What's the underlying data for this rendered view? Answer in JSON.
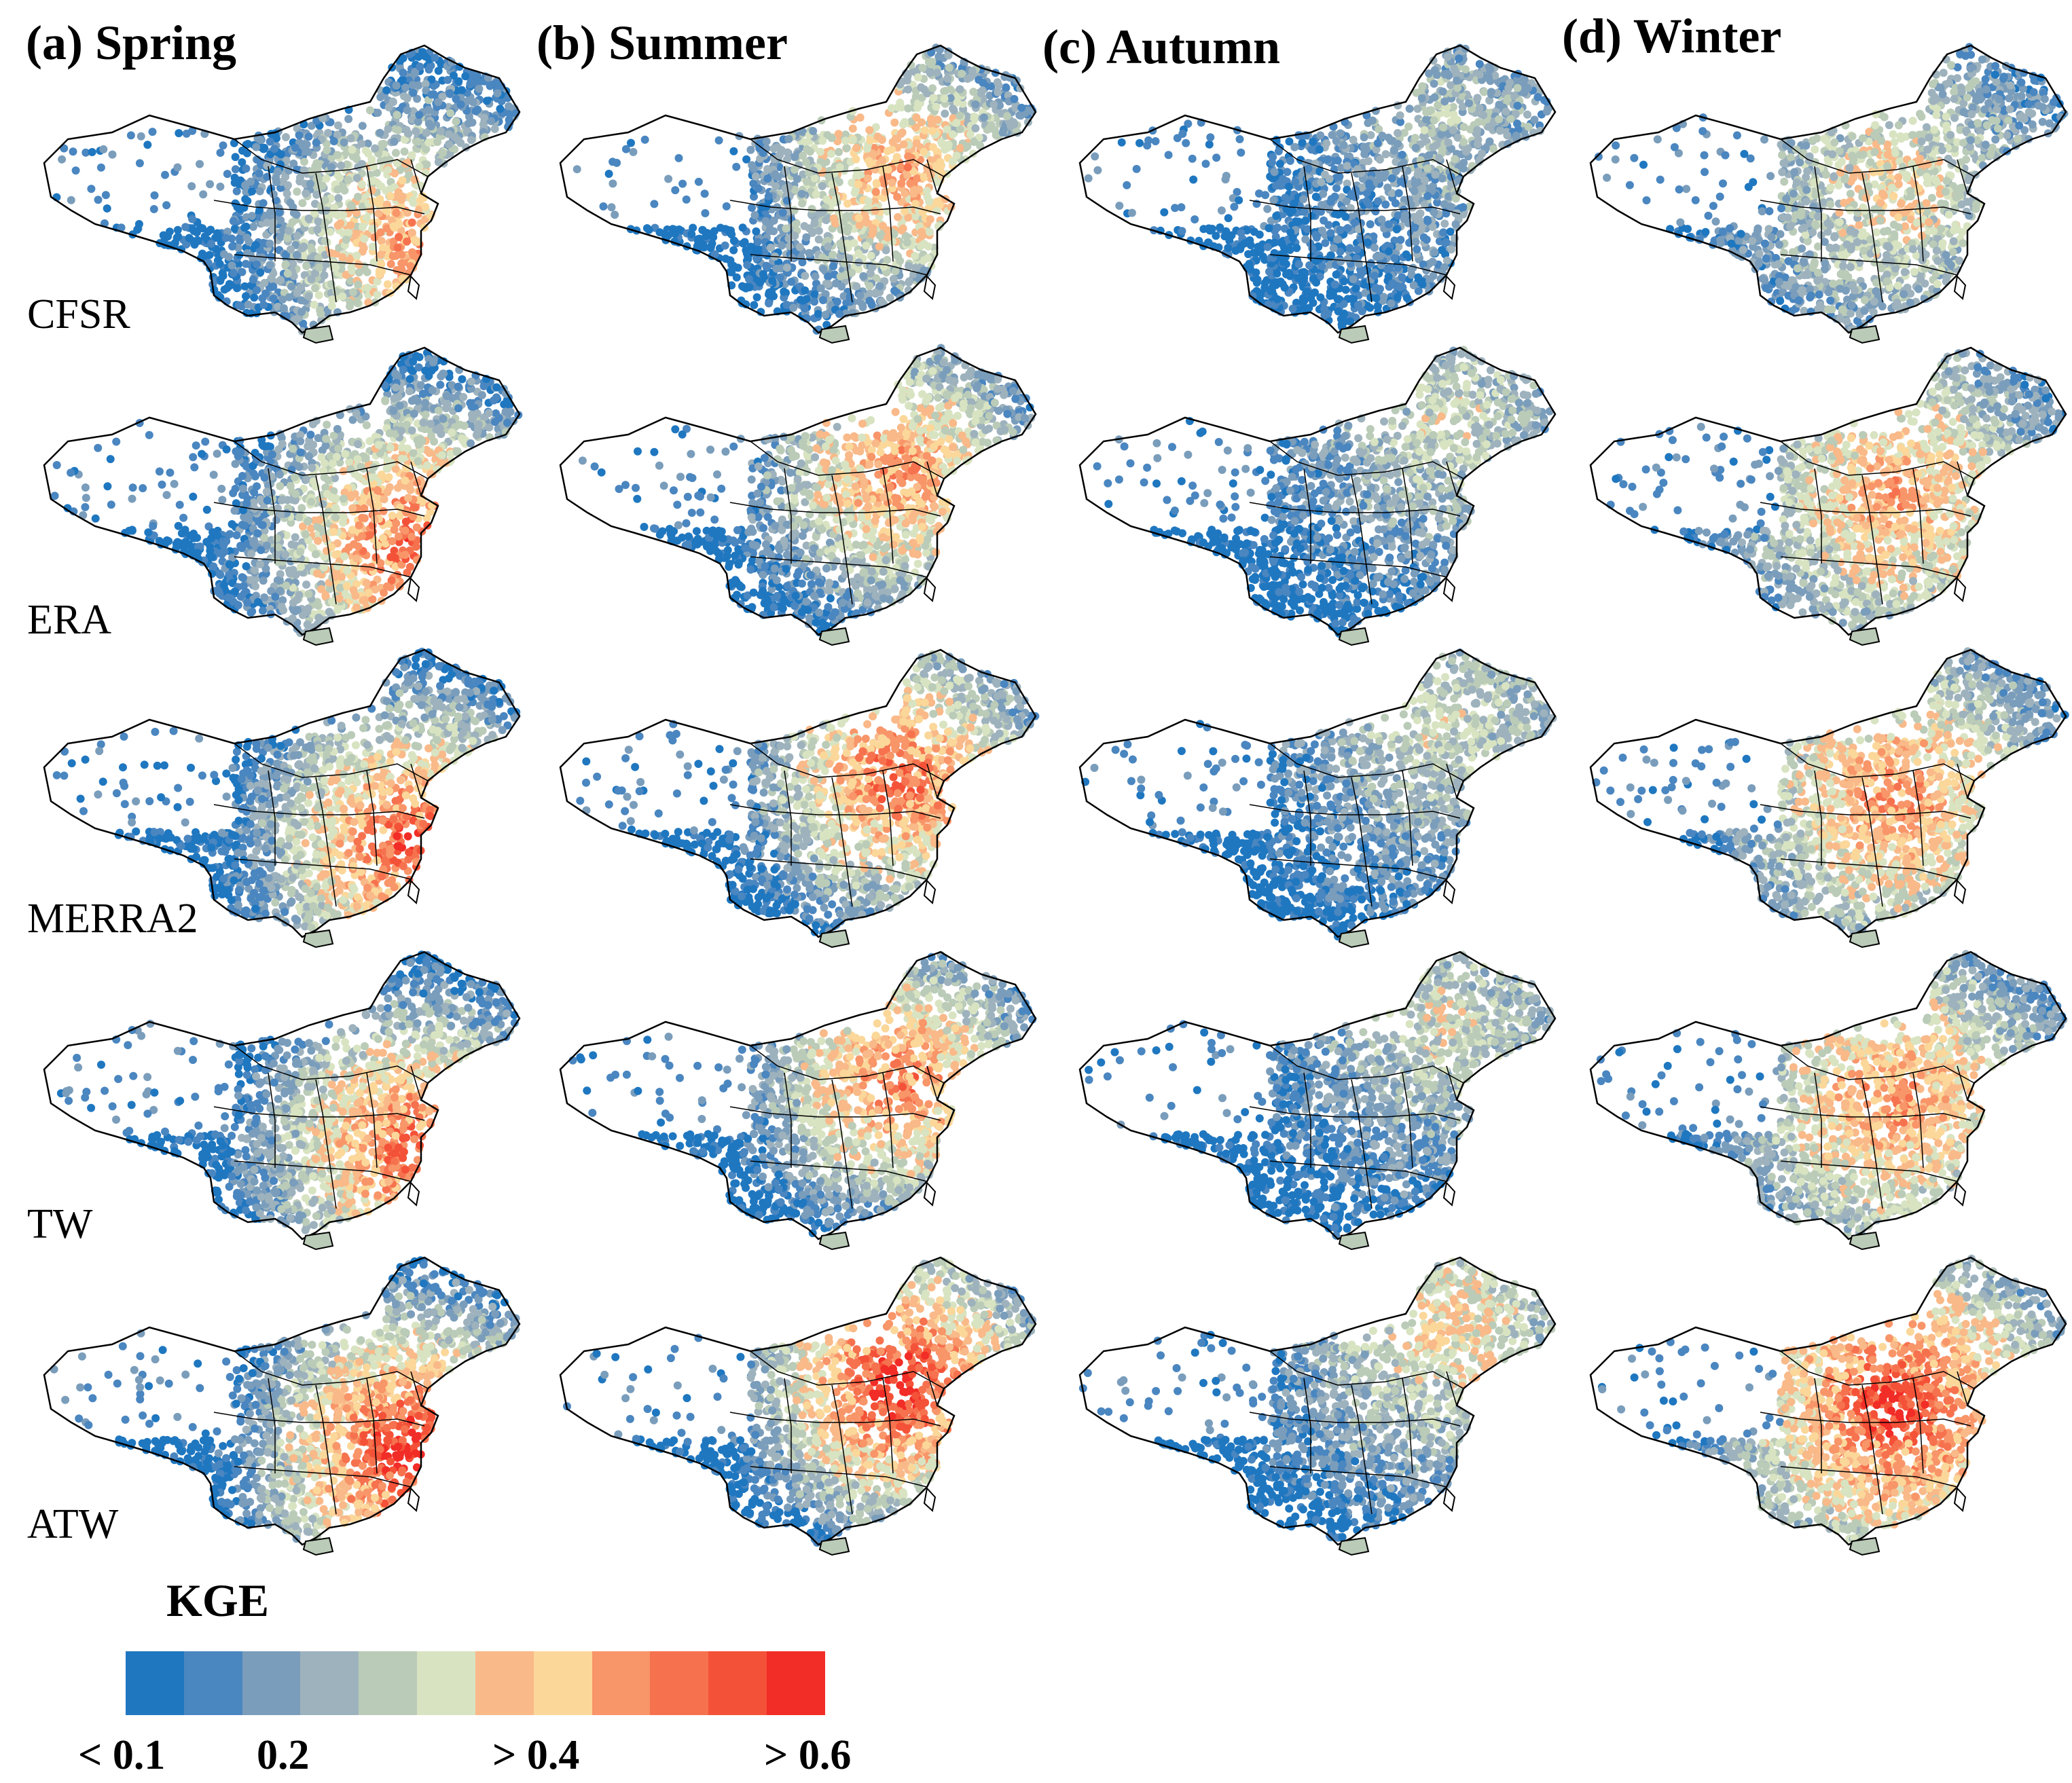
{
  "figure": {
    "columns": [
      {
        "id": "spring",
        "title": "(a) Spring"
      },
      {
        "id": "summer",
        "title": "(b) Summer"
      },
      {
        "id": "autumn",
        "title": "(c) Autumn"
      },
      {
        "id": "winter",
        "title": "(d) Winter"
      }
    ],
    "rows": [
      {
        "id": "cfsr",
        "label": "CFSR"
      },
      {
        "id": "era",
        "label": "ERA"
      },
      {
        "id": "merra2",
        "label": "MERRA2"
      },
      {
        "id": "tw",
        "label": "TW"
      },
      {
        "id": "atw",
        "label": "ATW"
      }
    ]
  },
  "legend": {
    "title": "KGE",
    "colors": [
      "#1f77c0",
      "#4a86c0",
      "#7a9dbb",
      "#9db2bd",
      "#bacbb8",
      "#d8e3c2",
      "#f9b989",
      "#fbd79a",
      "#f89569",
      "#f6724f",
      "#f45238",
      "#f22c26"
    ],
    "tick_labels": [
      "< 0.1",
      "0.2",
      "> 0.4",
      "> 0.6"
    ]
  },
  "colors": {
    "low": "#1f77c0",
    "high": "#f22c26",
    "outline": "#000000"
  }
}
